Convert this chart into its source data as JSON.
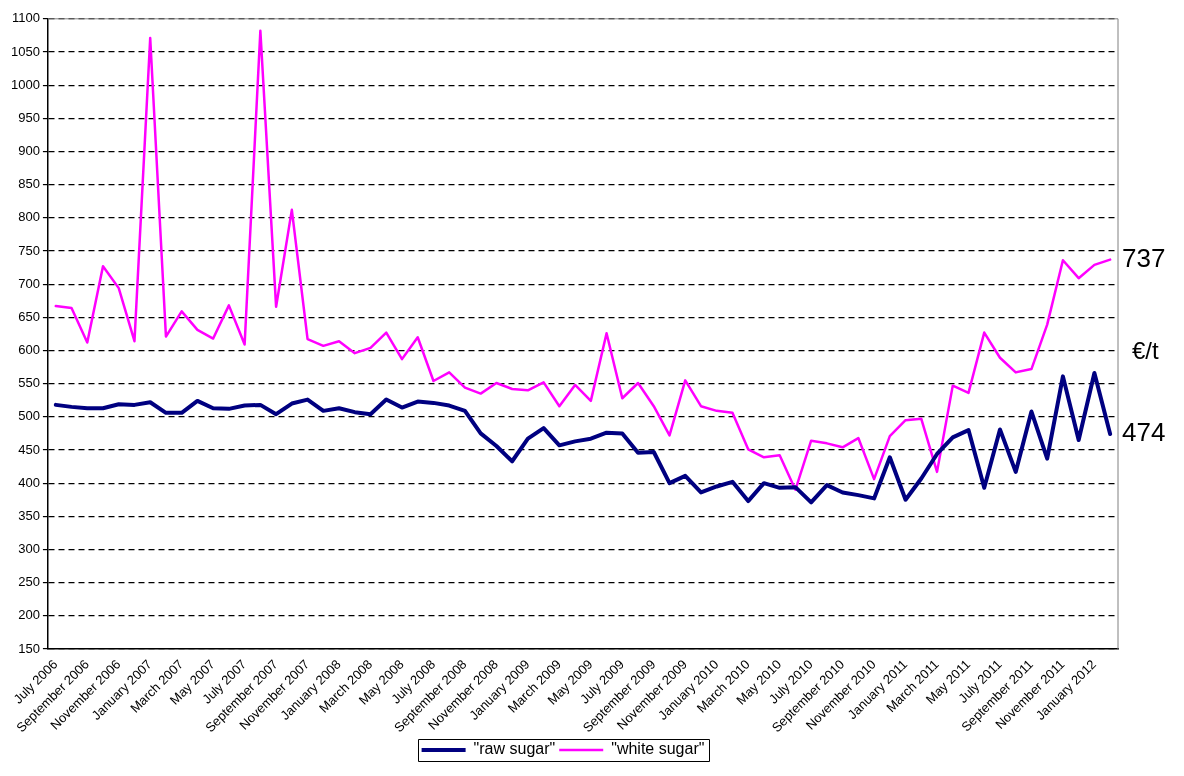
{
  "chart_data": {
    "type": "line",
    "categories": [
      "July 2006",
      null,
      "September 2006",
      null,
      "November 2006",
      null,
      "January 2007",
      null,
      "March 2007",
      null,
      "May 2007",
      null,
      "July 2007",
      null,
      "September 2007",
      null,
      "November 2007",
      null,
      "January 2008",
      null,
      "March 2008",
      null,
      "May 2008",
      null,
      "July 2008",
      null,
      "September 2008",
      null,
      "November 2008",
      null,
      "January 2009",
      null,
      "March 2009",
      null,
      "May 2009",
      null,
      "July 2009",
      null,
      "September 2009",
      null,
      "November 2009",
      null,
      "January 2010",
      null,
      "March 2010",
      null,
      "May 2010",
      null,
      "July 2010",
      null,
      "September 2010",
      null,
      "November 2010",
      null,
      "January 2011",
      null,
      "March 2011",
      null,
      "May 2011",
      null,
      "July 2011",
      null,
      "September 2011",
      null,
      "November 2011",
      null,
      "January 2012",
      null
    ],
    "series": [
      {
        "name": "\"raw sugar\"",
        "color": "#000080",
        "values": [
          518,
          515,
          513,
          513,
          519,
          518,
          522,
          506,
          506,
          524,
          513,
          512,
          517,
          518,
          504,
          520,
          526,
          509,
          513,
          507,
          504,
          526,
          514,
          523,
          521,
          517,
          509,
          475,
          456,
          433,
          467,
          483,
          457,
          463,
          467,
          476,
          475,
          446,
          447,
          400,
          411,
          386,
          395,
          402,
          373,
          400,
          393,
          394,
          371,
          397,
          386,
          382,
          377,
          439,
          375,
          407,
          444,
          469,
          480,
          393,
          481,
          417,
          508,
          437,
          561,
          465,
          566,
          474
        ]
      },
      {
        "name": "\"white sugar\"",
        "color": "#ff00ff",
        "values": [
          667,
          664,
          612,
          727,
          694,
          614,
          1071,
          621,
          659,
          631,
          618,
          668,
          609,
          1082,
          666,
          812,
          617,
          607,
          614,
          596,
          604,
          627,
          587,
          620,
          554,
          567,
          544,
          535,
          551,
          542,
          540,
          552,
          516,
          548,
          524,
          626,
          528,
          551,
          516,
          472,
          555,
          516,
          509,
          506,
          451,
          439,
          442,
          390,
          464,
          460,
          454,
          468,
          406,
          471,
          495,
          497,
          417,
          547,
          536,
          627,
          589,
          567,
          572,
          639,
          736,
          709,
          729,
          737
        ]
      }
    ],
    "ylabel": "€/t",
    "annotations": [
      "737",
      "474"
    ],
    "ylim": [
      150,
      1100
    ],
    "yticks": [
      150,
      200,
      250,
      300,
      350,
      400,
      450,
      500,
      550,
      600,
      650,
      700,
      750,
      800,
      850,
      900,
      950,
      1000,
      1050,
      1100
    ],
    "grid": "y",
    "legend": "bottom",
    "marker": "none",
    "line_style": "solid"
  }
}
